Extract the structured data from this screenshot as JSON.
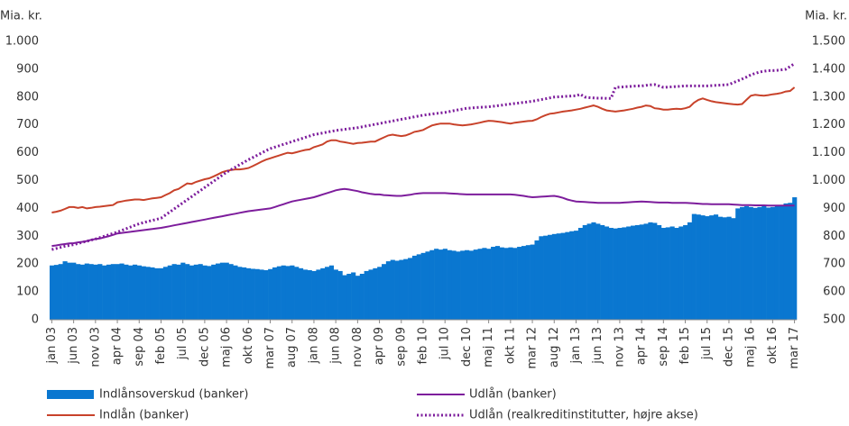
{
  "chart_data": {
    "type": "bar",
    "ylabel": "Mia. kr.",
    "y2label": "Mia. kr.",
    "ylim": [
      0,
      1000
    ],
    "yticks": [
      0,
      100,
      200,
      300,
      400,
      500,
      600,
      700,
      800,
      900,
      {
        "value": 1000,
        "label": "1.000"
      }
    ],
    "y2lim": [
      500,
      1500
    ],
    "y2ticks": [
      500,
      600,
      700,
      800,
      900,
      {
        "value": 1000,
        "label": "1.000"
      },
      {
        "value": 1100,
        "label": "1.100"
      },
      {
        "value": 1200,
        "label": "1.200"
      },
      {
        "value": 1300,
        "label": "1.300"
      },
      {
        "value": 1400,
        "label": "1.400"
      },
      {
        "value": 1500,
        "label": "1.500"
      }
    ],
    "grid": false,
    "categories": [
      "jan 03",
      null,
      null,
      null,
      null,
      "jun 03",
      null,
      null,
      null,
      null,
      "nov 03",
      null,
      null,
      null,
      null,
      "apr 04",
      null,
      null,
      null,
      null,
      "sep 04",
      null,
      null,
      null,
      null,
      "feb 05",
      null,
      null,
      null,
      null,
      "jul 05",
      null,
      null,
      null,
      null,
      "dec 05",
      null,
      null,
      null,
      null,
      "maj 06",
      null,
      null,
      null,
      null,
      "okt 06",
      null,
      null,
      null,
      null,
      "mar 07",
      null,
      null,
      null,
      null,
      "aug 07",
      null,
      null,
      null,
      null,
      "jan 08",
      null,
      null,
      null,
      null,
      "jun 08",
      null,
      null,
      null,
      null,
      "nov 08",
      null,
      null,
      null,
      null,
      "apr 09",
      null,
      null,
      null,
      null,
      "sep 09",
      null,
      null,
      null,
      null,
      "feb 10",
      null,
      null,
      null,
      null,
      "jul 10",
      null,
      null,
      null,
      null,
      "dec 10",
      null,
      null,
      null,
      null,
      "maj 11",
      null,
      null,
      null,
      null,
      "okt 11",
      null,
      null,
      null,
      null,
      "mar 12",
      null,
      null,
      null,
      null,
      "aug 12",
      null,
      null,
      null,
      null,
      "jan 13",
      null,
      null,
      null,
      null,
      "jun 13",
      null,
      null,
      null,
      null,
      "nov 13",
      null,
      null,
      null,
      null,
      "apr 14",
      null,
      null,
      null,
      null,
      "sep 14",
      null,
      null,
      null,
      null,
      "feb 15",
      null,
      null,
      null,
      null,
      "jul 15",
      null,
      null,
      null,
      null,
      "dec 15",
      null,
      null,
      null,
      null,
      "maj 16",
      null,
      null,
      null,
      null,
      "okt 16",
      null,
      null,
      null,
      null,
      "mar 17"
    ],
    "series": [
      {
        "name": "Indlånsoverskud (banker)",
        "type": "bar",
        "color": "#0a77d0",
        "values": [
          195,
          197,
          200,
          210,
          205,
          205,
          200,
          198,
          202,
          200,
          198,
          200,
          195,
          198,
          200,
          200,
          202,
          198,
          195,
          198,
          195,
          192,
          190,
          188,
          185,
          185,
          190,
          195,
          200,
          198,
          205,
          200,
          195,
          198,
          200,
          195,
          193,
          198,
          202,
          205,
          205,
          200,
          195,
          190,
          188,
          185,
          183,
          182,
          180,
          178,
          182,
          188,
          192,
          195,
          193,
          195,
          190,
          185,
          180,
          178,
          175,
          180,
          185,
          190,
          195,
          180,
          175,
          160,
          165,
          170,
          158,
          165,
          175,
          180,
          185,
          190,
          200,
          210,
          215,
          212,
          215,
          218,
          222,
          230,
          235,
          240,
          245,
          250,
          255,
          252,
          255,
          250,
          248,
          245,
          248,
          250,
          248,
          252,
          255,
          258,
          255,
          262,
          265,
          260,
          258,
          260,
          258,
          262,
          265,
          268,
          270,
          285,
          300,
          302,
          305,
          308,
          310,
          312,
          315,
          318,
          320,
          330,
          340,
          345,
          350,
          345,
          340,
          335,
          330,
          328,
          330,
          332,
          335,
          338,
          340,
          342,
          345,
          350,
          348,
          340,
          330,
          332,
          335,
          330,
          335,
          340,
          350,
          380,
          378,
          375,
          372,
          375,
          378,
          370,
          368,
          370,
          365,
          400,
          405,
          408,
          405,
          402,
          405,
          408,
          403,
          405,
          408,
          410,
          418,
          420,
          440
        ]
      },
      {
        "name": "Udlån (banker)",
        "type": "line",
        "color": "#7d1d9c",
        "values": [
          265,
          267,
          270,
          272,
          274,
          275,
          278,
          280,
          283,
          287,
          290,
          292,
          296,
          300,
          305,
          310,
          312,
          314,
          316,
          318,
          320,
          322,
          324,
          326,
          328,
          330,
          333,
          336,
          339,
          342,
          345,
          348,
          351,
          354,
          357,
          360,
          363,
          366,
          369,
          372,
          375,
          378,
          381,
          384,
          387,
          390,
          392,
          394,
          396,
          398,
          400,
          405,
          410,
          415,
          420,
          425,
          428,
          431,
          434,
          437,
          440,
          445,
          450,
          455,
          460,
          465,
          468,
          470,
          468,
          465,
          462,
          458,
          455,
          452,
          450,
          450,
          448,
          447,
          446,
          445,
          445,
          447,
          449,
          452,
          454,
          455,
          455,
          455,
          455,
          455,
          455,
          454,
          453,
          452,
          451,
          450,
          450,
          450,
          450,
          450,
          450,
          450,
          450,
          450,
          450,
          450,
          449,
          447,
          445,
          442,
          440,
          441,
          442,
          443,
          444,
          445,
          442,
          438,
          432,
          428,
          425,
          424,
          423,
          422,
          421,
          420,
          420,
          420,
          420,
          420,
          420,
          421,
          422,
          423,
          424,
          425,
          424,
          423,
          422,
          421,
          421,
          421,
          420,
          420,
          420,
          420,
          419,
          418,
          417,
          416,
          416,
          415,
          415,
          415,
          415,
          415,
          414,
          413,
          412,
          412,
          412,
          411,
          411,
          411,
          410,
          410,
          410,
          410,
          410,
          410,
          410
        ]
      },
      {
        "name": "Indlån (banker)",
        "type": "line",
        "color": "#c8422a",
        "values": [
          385,
          388,
          392,
          398,
          405,
          405,
          402,
          405,
          400,
          402,
          405,
          406,
          408,
          410,
          412,
          422,
          425,
          428,
          430,
          432,
          432,
          430,
          433,
          436,
          438,
          440,
          448,
          455,
          465,
          470,
          480,
          490,
          488,
          495,
          500,
          505,
          508,
          515,
          522,
          530,
          535,
          538,
          540,
          540,
          542,
          545,
          552,
          560,
          568,
          575,
          580,
          585,
          590,
          595,
          600,
          598,
          602,
          606,
          610,
          612,
          620,
          625,
          630,
          640,
          645,
          645,
          640,
          638,
          635,
          632,
          635,
          636,
          638,
          640,
          640,
          648,
          655,
          662,
          665,
          662,
          660,
          662,
          668,
          675,
          678,
          682,
          690,
          698,
          702,
          705,
          705,
          705,
          702,
          700,
          698,
          700,
          702,
          705,
          708,
          712,
          715,
          714,
          712,
          710,
          707,
          705,
          708,
          710,
          712,
          714,
          715,
          720,
          728,
          735,
          740,
          742,
          745,
          748,
          750,
          752,
          755,
          758,
          762,
          766,
          770,
          765,
          758,
          752,
          750,
          748,
          750,
          752,
          755,
          758,
          762,
          765,
          770,
          768,
          760,
          758,
          755,
          755,
          757,
          758,
          757,
          760,
          765,
          780,
          790,
          795,
          790,
          785,
          782,
          780,
          778,
          776,
          774,
          773,
          775,
          790,
          805,
          808,
          806,
          805,
          807,
          810,
          812,
          815,
          820,
          822,
          835
        ]
      },
      {
        "name": "Udlån (realkreditinstitutter, højre akse)",
        "type": "line",
        "style": "dotted",
        "axis": "y2",
        "color": "#7d1d9c",
        "values": [
          752,
          756,
          760,
          764,
          767,
          770,
          774,
          778,
          782,
          786,
          790,
          795,
          800,
          805,
          810,
          815,
          821,
          827,
          833,
          839,
          845,
          849,
          853,
          857,
          861,
          865,
          876,
          887,
          898,
          909,
          920,
          931,
          942,
          953,
          964,
          975,
          986,
          997,
          1008,
          1019,
          1030,
          1039,
          1048,
          1057,
          1066,
          1075,
          1083,
          1091,
          1099,
          1107,
          1115,
          1120,
          1125,
          1130,
          1135,
          1140,
          1145,
          1150,
          1155,
          1160,
          1165,
          1168,
          1171,
          1174,
          1177,
          1180,
          1182,
          1184,
          1186,
          1188,
          1190,
          1193,
          1196,
          1199,
          1202,
          1205,
          1208,
          1211,
          1214,
          1217,
          1220,
          1223,
          1226,
          1229,
          1232,
          1235,
          1237,
          1239,
          1241,
          1243,
          1245,
          1248,
          1251,
          1254,
          1257,
          1260,
          1261,
          1262,
          1263,
          1264,
          1265,
          1267,
          1269,
          1271,
          1273,
          1275,
          1277,
          1279,
          1281,
          1283,
          1285,
          1288,
          1291,
          1294,
          1297,
          1300,
          1301,
          1302,
          1303,
          1304,
          1305,
          1310,
          1300,
          1298,
          1297,
          1296,
          1296,
          1295,
          1295,
          1335,
          1336,
          1337,
          1338,
          1339,
          1340,
          1340,
          1342,
          1344,
          1345,
          1340,
          1335,
          1336,
          1337,
          1338,
          1339,
          1340,
          1340,
          1340,
          1340,
          1340,
          1340,
          1341,
          1342,
          1343,
          1344,
          1345,
          1352,
          1358,
          1365,
          1372,
          1380,
          1385,
          1390,
          1393,
          1395,
          1395,
          1396,
          1398,
          1400,
          1410,
          1420
        ]
      }
    ]
  }
}
